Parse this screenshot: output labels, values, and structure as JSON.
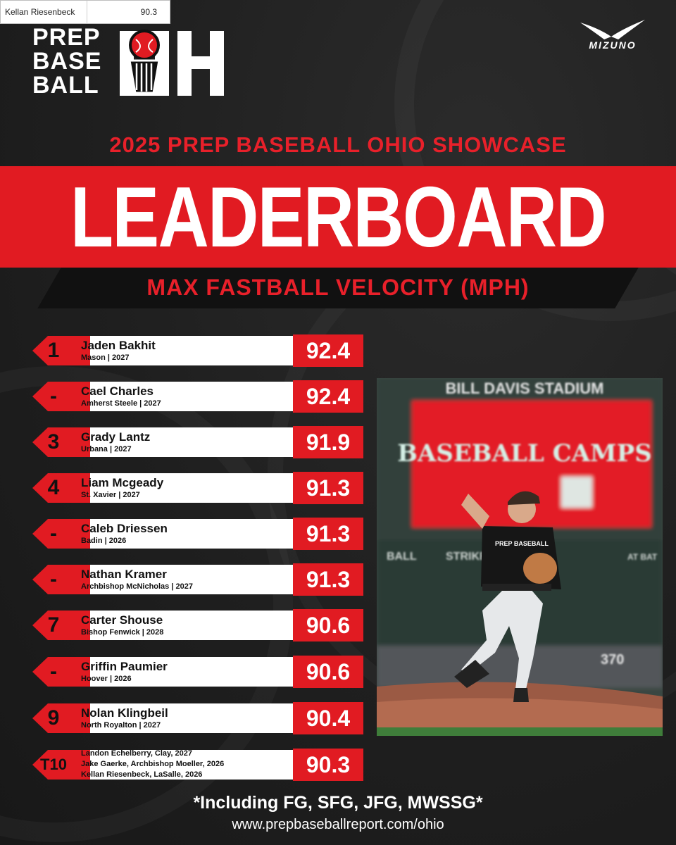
{
  "tooltip": {
    "label": "Kellan Riesenbeck",
    "value": "90.3"
  },
  "logo": {
    "line1": "PREP",
    "line2": "BASE",
    "line3": "BALL",
    "state": "OH"
  },
  "sponsor": "MIZUNO",
  "header": {
    "event": "2025 PREP BASEBALL OHIO SHOWCASE",
    "title": "LEADERBOARD",
    "subtitle": "MAX FASTBALL VELOCITY (MPH)"
  },
  "rows": [
    {
      "rank": "1",
      "name": "Jaden Bakhit",
      "meta": "Mason | 2027",
      "velo": "92.4"
    },
    {
      "rank": "-",
      "name": "Cael Charles",
      "meta": "Amherst Steele | 2027",
      "velo": "92.4"
    },
    {
      "rank": "3",
      "name": "Grady Lantz",
      "meta": "Urbana | 2027",
      "velo": "91.9"
    },
    {
      "rank": "4",
      "name": "Liam Mcgeady",
      "meta": "St. Xavier | 2027",
      "velo": "91.3"
    },
    {
      "rank": "-",
      "name": "Caleb Driessen",
      "meta": "Badin | 2026",
      "velo": "91.3"
    },
    {
      "rank": "-",
      "name": "Nathan Kramer",
      "meta": "Archbishop McNicholas | 2027",
      "velo": "91.3"
    },
    {
      "rank": "7",
      "name": "Carter Shouse",
      "meta": "Bishop Fenwick | 2028",
      "velo": "90.6"
    },
    {
      "rank": "-",
      "name": "Griffin Paumier",
      "meta": "Hoover | 2026",
      "velo": "90.6"
    },
    {
      "rank": "9",
      "name": "Nolan Klingbeil",
      "meta": "North Royalton | 2027",
      "velo": "90.4"
    }
  ],
  "tie_row": {
    "rank": "T10",
    "lines": [
      "Landon Echelberry, Clay, 2027",
      "Jake Gaerke, Archbishop Moeller, 2026",
      "Kellan Riesenbeck, LaSalle, 2026"
    ],
    "velo": "90.3"
  },
  "photo": {
    "stadium": "BILL DAVIS STADIUM",
    "board_text": "BASEBALL CAMPS",
    "jersey": "PREP BASEBALL",
    "ball_label": "BALL",
    "strike_label": "STRIKE",
    "away_label": "AT BAT",
    "wall_number": "370"
  },
  "footer": {
    "note": "*Including FG, SFG, JFG, MWSSG*",
    "url": "www.prepbaseballreport.com/ohio"
  },
  "colors": {
    "red": "#e11b22",
    "background": "#1d1d1d",
    "white": "#ffffff"
  }
}
